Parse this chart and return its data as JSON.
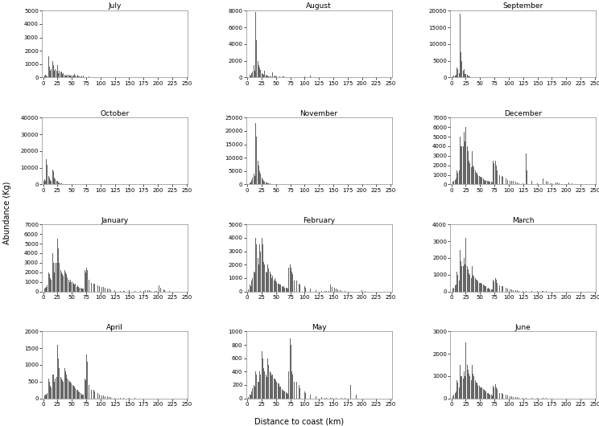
{
  "months": [
    "July",
    "August",
    "September",
    "October",
    "November",
    "December",
    "January",
    "February",
    "March",
    "April",
    "May",
    "June"
  ],
  "ylims": {
    "July": [
      0,
      5000
    ],
    "August": [
      0,
      8000
    ],
    "September": [
      0,
      20000
    ],
    "October": [
      0,
      40000
    ],
    "November": [
      0,
      25000
    ],
    "December": [
      0,
      7000
    ],
    "January": [
      0,
      7000
    ],
    "February": [
      0,
      5000
    ],
    "March": [
      0,
      4000
    ],
    "April": [
      0,
      2000
    ],
    "May": [
      0,
      1000
    ],
    "June": [
      0,
      3000
    ]
  },
  "yticks": {
    "July": [
      0,
      1000,
      2000,
      3000,
      4000,
      5000
    ],
    "August": [
      0,
      2000,
      4000,
      6000,
      8000
    ],
    "September": [
      0,
      5000,
      10000,
      15000,
      20000
    ],
    "October": [
      0,
      10000,
      20000,
      30000,
      40000
    ],
    "November": [
      0,
      5000,
      10000,
      15000,
      20000,
      25000
    ],
    "December": [
      0,
      1000,
      2000,
      3000,
      4000,
      5000,
      6000,
      7000
    ],
    "January": [
      0,
      1000,
      2000,
      3000,
      4000,
      5000,
      6000,
      7000
    ],
    "February": [
      0,
      1000,
      2000,
      3000,
      4000,
      5000
    ],
    "March": [
      0,
      1000,
      2000,
      3000,
      4000
    ],
    "April": [
      0,
      500,
      1000,
      1500,
      2000
    ],
    "May": [
      0,
      200,
      400,
      600,
      800,
      1000
    ],
    "June": [
      0,
      1000,
      2000,
      3000
    ]
  },
  "bar_color": "#666666",
  "bar_width": 0.8,
  "xlabel": "Distance to coast (km)",
  "ylabel": "Abundance (Kg)",
  "xlim": [
    -2,
    252
  ],
  "xticks": [
    0,
    25,
    50,
    75,
    100,
    125,
    150,
    175,
    200,
    225,
    250
  ],
  "title_fontsize": 6.5,
  "axis_fontsize": 5,
  "label_fontsize": 7
}
